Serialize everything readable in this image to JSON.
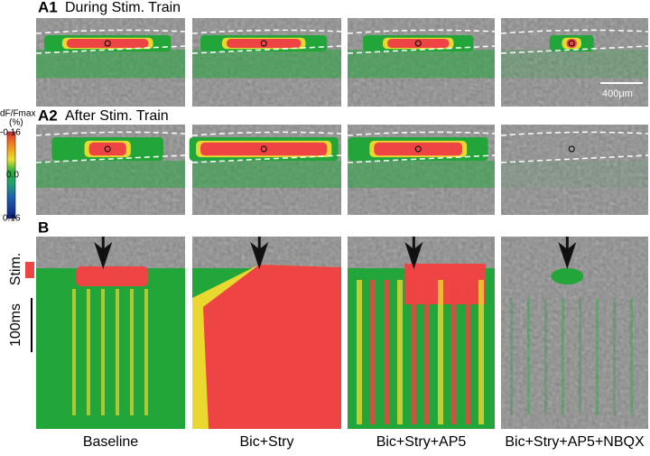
{
  "panels": {
    "a1": {
      "letter": "A1",
      "title": "During Stim. Train"
    },
    "a2": {
      "letter": "A2",
      "title": "After Stim. Train"
    },
    "b": {
      "letter": "B"
    }
  },
  "colorbar": {
    "label": "dF/Fmax",
    "unit": "(%)",
    "ticks": [
      "-0.16",
      "0.0",
      "0.16"
    ]
  },
  "scale_bar": "400μm",
  "stim_label": "Stim.",
  "time_bar": "100ms",
  "columns": [
    "Baseline",
    "Bic+Stry",
    "Bic+Stry+AP5",
    "Bic+Stry+AP5+NBQX"
  ]
}
